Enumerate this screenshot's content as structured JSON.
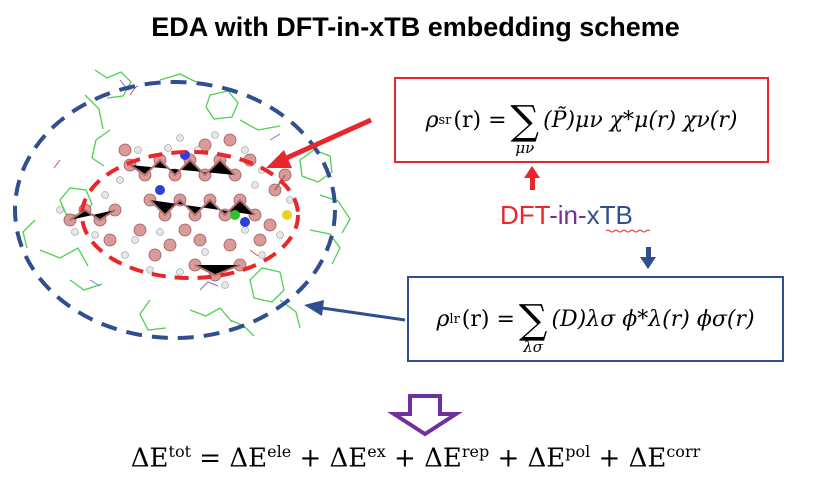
{
  "title": "EDA with DFT-in-xTB embedding scheme",
  "label": {
    "part1": "DFT",
    "part2": "-in-",
    "part3": "xTB"
  },
  "sr_equation": {
    "lhs": "ρ",
    "lhs_sup": "sr",
    "arg": "(r) =",
    "sum_index": "μν",
    "body": "(P̃)μν χ*μ(r) χν(r)"
  },
  "lr_equation": {
    "lhs": "ρ",
    "lhs_sup": "lr",
    "arg": "(r) =",
    "sum_index": "λσ",
    "body": "(D)λσ ϕ*λ(r) ϕσ(r)"
  },
  "energy_equation": {
    "terms": [
      "ΔE",
      "tot",
      "= ΔE",
      "ele",
      "+ ΔE",
      "ex",
      "+ ΔE",
      "rep",
      "+ ΔE",
      "pol",
      "+ ΔE",
      "corr"
    ]
  },
  "colors": {
    "red": "#e8262b",
    "blue": "#2f4f8f",
    "purple": "#7030a0",
    "atom": "#d99a9a",
    "frame": "#4fd14f"
  }
}
